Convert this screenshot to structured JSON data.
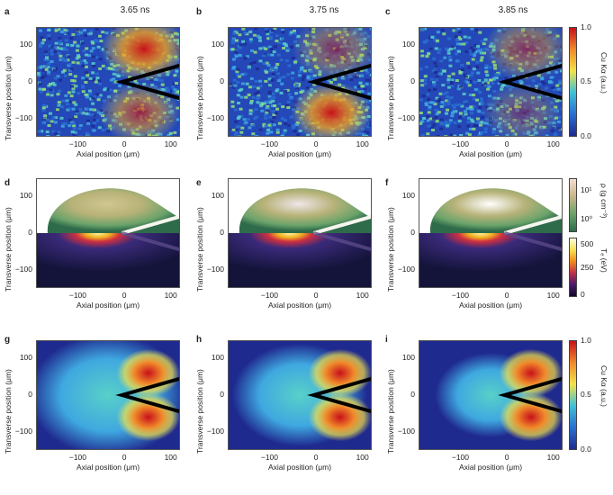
{
  "columns": [
    "3.65 ns",
    "3.75 ns",
    "3.85 ns"
  ],
  "panel_letters": [
    "a",
    "b",
    "c",
    "d",
    "e",
    "f",
    "g",
    "h",
    "i"
  ],
  "axes": {
    "xlabel": "Axial position (μm)",
    "ylabel": "Transverse position (μm)",
    "xticks": [
      "−100",
      "0",
      "100"
    ],
    "yticks": [
      "100",
      "0",
      "−100"
    ]
  },
  "colorbars": {
    "cuka_top": {
      "label": "Cu Kα (a.u.)",
      "ticks": [
        "1.0",
        "0.5",
        "0.0"
      ]
    },
    "rho": {
      "label": "ρ (g cm⁻³)",
      "ticks": [
        "10¹",
        "10⁰"
      ]
    },
    "te": {
      "label": "Tₑ (eV)",
      "ticks": [
        "500",
        "250",
        "0"
      ]
    },
    "cuka_bottom": {
      "label": "Cu Kα (a.u.)",
      "ticks": [
        "1.0",
        "0.5",
        "0.0"
      ]
    }
  },
  "colors": {
    "jet_low": "#1f2a8f",
    "jet_high": "#c8101a",
    "sim_dark": "#1a1a3a",
    "sim_green": "#6aa36a"
  }
}
